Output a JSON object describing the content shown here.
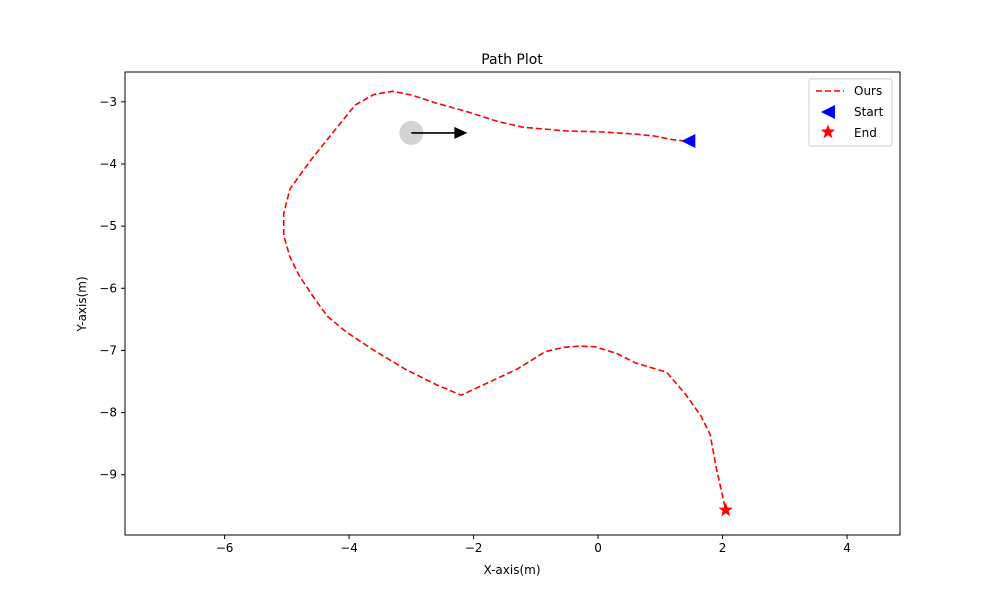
{
  "chart_data": {
    "type": "line",
    "title": "Path Plot",
    "xlabel": "X-axis(m)",
    "ylabel": "Y-axis(m)",
    "xlim": [
      -7.6,
      4.85
    ],
    "ylim": [
      -9.97,
      -2.52
    ],
    "xticks": [
      -6,
      -4,
      -2,
      0,
      2,
      4
    ],
    "yticks": [
      -3,
      -4,
      -5,
      -6,
      -7,
      -8,
      -9
    ],
    "xtick_labels": [
      "−6",
      "−4",
      "−2",
      "0",
      "2",
      "4"
    ],
    "ytick_labels": [
      "−3",
      "−4",
      "−5",
      "−6",
      "−7",
      "−8",
      "−9"
    ],
    "grid": false,
    "legend_position": "top-right",
    "series": [
      {
        "name": "Ours",
        "style": "dashed",
        "color": "#ff0000",
        "x": [
          1.4,
          1.2,
          0.9,
          0.6,
          0.3,
          0.0,
          -0.5,
          -1.2,
          -1.6,
          -2.1,
          -2.6,
          -3.0,
          -3.3,
          -3.6,
          -3.9,
          -4.2,
          -4.6,
          -4.95,
          -5.05,
          -5.05,
          -4.95,
          -4.8,
          -4.6,
          -4.35,
          -4.05,
          -3.6,
          -3.1,
          -2.6,
          -2.2,
          -1.9,
          -1.3,
          -0.85,
          -0.55,
          -0.3,
          -0.05,
          0.3,
          0.6,
          1.1,
          1.4,
          1.65,
          1.8,
          1.9,
          2.05
        ],
        "y": [
          -3.63,
          -3.61,
          -3.55,
          -3.52,
          -3.5,
          -3.48,
          -3.47,
          -3.41,
          -3.32,
          -3.16,
          -3.02,
          -2.89,
          -2.83,
          -2.88,
          -3.05,
          -3.42,
          -3.92,
          -4.4,
          -4.8,
          -5.15,
          -5.5,
          -5.8,
          -6.1,
          -6.45,
          -6.7,
          -7.0,
          -7.3,
          -7.55,
          -7.72,
          -7.58,
          -7.3,
          -7.02,
          -6.95,
          -6.93,
          -6.94,
          -7.05,
          -7.2,
          -7.35,
          -7.7,
          -8.05,
          -8.35,
          -8.9,
          -9.57
        ]
      }
    ],
    "markers": [
      {
        "name": "Start",
        "shape": "triangle-left",
        "color": "#0000ff",
        "x": 1.45,
        "y": -3.63
      },
      {
        "name": "End",
        "shape": "star",
        "color": "#ff0000",
        "x": 2.05,
        "y": -9.57
      }
    ],
    "agent": {
      "x": -3.0,
      "y": -3.5,
      "color": "#d3d3d3"
    },
    "heading_arrow": {
      "x_start": -3.0,
      "y_start": -3.5,
      "x_end": -2.1,
      "y_end": -3.5,
      "color": "#000000"
    },
    "legend_items": [
      "Ours",
      "Start",
      "End"
    ]
  }
}
